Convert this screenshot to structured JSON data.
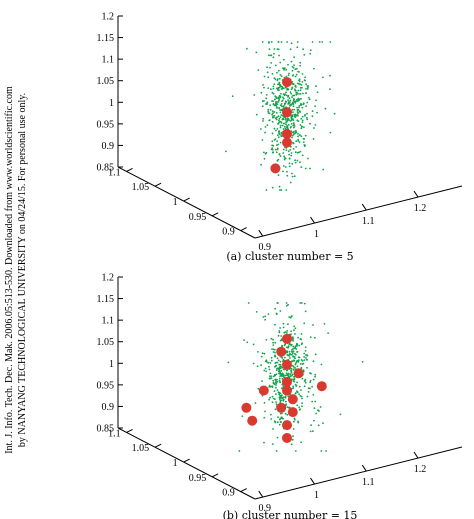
{
  "side_note": {
    "line1": "Int. J. Info. Tech. Dec. Mak. 2006.05:513-530. Downloaded from www.worldscientific.com",
    "line2": "by NANYANG TECHNOLOGICAL UNIVERSITY on 04/24/15. For personal use only."
  },
  "colors": {
    "points": "#13a34a",
    "centers": "#d93a2f",
    "axis": "#000000"
  },
  "chart_data": [
    {
      "type": "scatter",
      "caption": "(a) cluster number = 5",
      "z_ticks": [
        "0.85",
        "0.9",
        "0.95",
        "1",
        "1.05",
        "1.1",
        "1.15",
        "1.2"
      ],
      "y_ticks": [
        "1.1",
        "1.05",
        "1",
        "0.95",
        "0.9"
      ],
      "x_ticks": [
        "0.9",
        "1",
        "1.1",
        "1.2"
      ],
      "zlim": [
        0.85,
        1.2
      ],
      "ylim": [
        0.9,
        1.1
      ],
      "xlim": [
        0.9,
        1.2
      ],
      "grid": false,
      "series": [
        {
          "values_summary": "~600 green data points, dense vertical column around x=1, y=1"
        }
      ],
      "centers": [
        {
          "x": 1.0,
          "y": 1.0,
          "z": 1.07
        },
        {
          "x": 1.0,
          "y": 1.0,
          "z": 1.0
        },
        {
          "x": 1.0,
          "y": 1.0,
          "z": 0.95
        },
        {
          "x": 1.0,
          "y": 1.0,
          "z": 0.93
        },
        {
          "x": 0.98,
          "y": 1.0,
          "z": 0.87
        }
      ]
    },
    {
      "type": "scatter",
      "caption": "(b) cluster number = 15",
      "z_ticks": [
        "0.85",
        "0.9",
        "0.95",
        "1",
        "1.05",
        "1.1",
        "1.15",
        "1.2"
      ],
      "y_ticks": [
        "1.1",
        "1.05",
        "1",
        "0.95",
        "0.9"
      ],
      "x_ticks": [
        "0.9",
        "1",
        "1.1",
        "1.2"
      ],
      "zlim": [
        0.85,
        1.2
      ],
      "ylim": [
        0.9,
        1.1
      ],
      "xlim": [
        0.9,
        1.2
      ],
      "grid": false,
      "series": [
        {
          "values_summary": "~600 green data points, dense vertical column around x=1, y=1"
        }
      ],
      "centers": [
        {
          "x": 1.0,
          "y": 1.0,
          "z": 1.08
        },
        {
          "x": 0.99,
          "y": 1.0,
          "z": 1.05
        },
        {
          "x": 1.0,
          "y": 1.0,
          "z": 1.02
        },
        {
          "x": 1.02,
          "y": 1.0,
          "z": 1.0
        },
        {
          "x": 1.0,
          "y": 1.0,
          "z": 0.98
        },
        {
          "x": 1.0,
          "y": 1.0,
          "z": 0.96
        },
        {
          "x": 0.96,
          "y": 1.0,
          "z": 0.96
        },
        {
          "x": 1.06,
          "y": 1.0,
          "z": 0.97
        },
        {
          "x": 0.93,
          "y": 1.0,
          "z": 0.92
        },
        {
          "x": 1.01,
          "y": 1.0,
          "z": 0.94
        },
        {
          "x": 0.99,
          "y": 1.0,
          "z": 0.92
        },
        {
          "x": 1.01,
          "y": 1.0,
          "z": 0.91
        },
        {
          "x": 0.94,
          "y": 1.0,
          "z": 0.89
        },
        {
          "x": 1.0,
          "y": 1.0,
          "z": 0.88
        },
        {
          "x": 1.0,
          "y": 1.0,
          "z": 0.85
        }
      ]
    }
  ]
}
